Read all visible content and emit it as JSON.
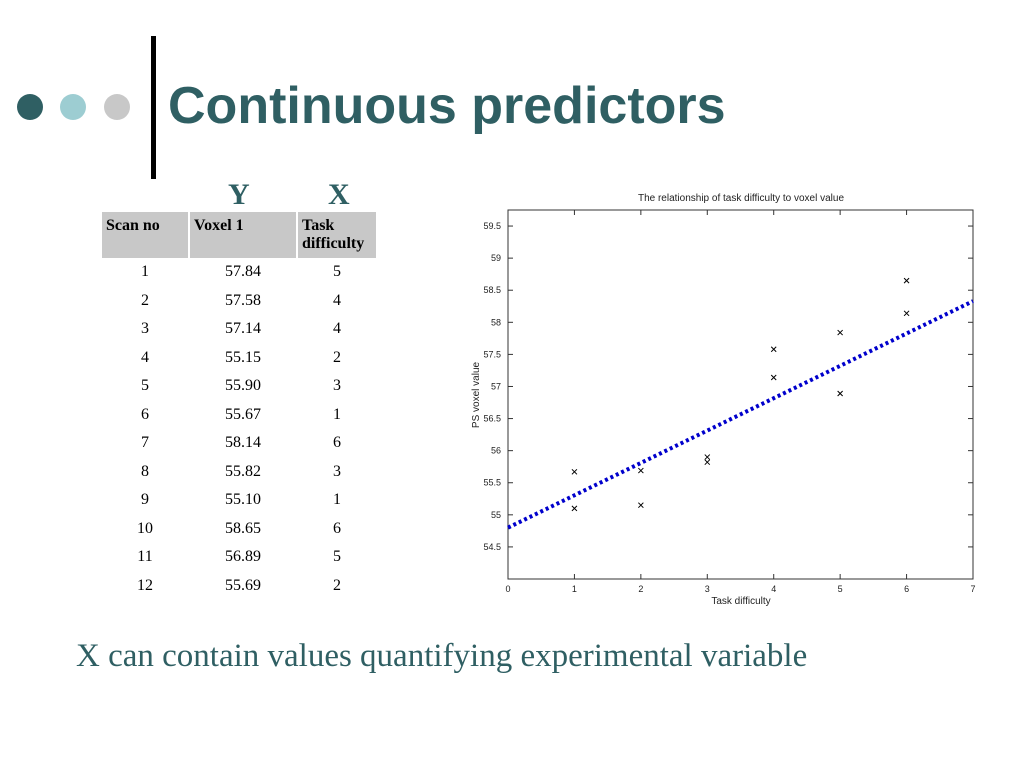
{
  "slide": {
    "title": "Continuous predictors",
    "y_label": "Y",
    "x_label": "X",
    "caption": "X can contain values quantifying experimental variable",
    "colors": {
      "title": "#2f5f63",
      "dot1": "#2f5f63",
      "dot2": "#9dcdd2",
      "dot3": "#c8c8c8",
      "fit_line": "#0000cc"
    }
  },
  "table": {
    "headers": [
      "Scan no",
      "Voxel 1",
      "Task difficulty"
    ],
    "rows": [
      [
        "1",
        "57.84",
        "5"
      ],
      [
        "2",
        "57.58",
        "4"
      ],
      [
        "3",
        "57.14",
        "4"
      ],
      [
        "4",
        "55.15",
        "2"
      ],
      [
        "5",
        "55.90",
        "3"
      ],
      [
        "6",
        "55.67",
        "1"
      ],
      [
        "7",
        "58.14",
        "6"
      ],
      [
        "8",
        "55.82",
        "3"
      ],
      [
        "9",
        "55.10",
        "1"
      ],
      [
        "10",
        "58.65",
        "6"
      ],
      [
        "11",
        "56.89",
        "5"
      ],
      [
        "12",
        "55.69",
        "2"
      ]
    ]
  },
  "chart_data": {
    "type": "scatter",
    "title": "The relationship of task difficulty to voxel value",
    "xlabel": "Task difficulty",
    "ylabel": "PS voxel value",
    "xlim": [
      0,
      7
    ],
    "ylim": [
      54,
      59.75
    ],
    "xticks": [
      "0",
      "1",
      "2",
      "3",
      "4",
      "5",
      "6",
      "7"
    ],
    "yticks": [
      "54.5",
      "55",
      "55.5",
      "56",
      "56.5",
      "57",
      "57.5",
      "58",
      "58.5",
      "59",
      "59.5"
    ],
    "grid": false,
    "points": [
      {
        "x": 5,
        "y": 57.84
      },
      {
        "x": 4,
        "y": 57.58
      },
      {
        "x": 4,
        "y": 57.14
      },
      {
        "x": 2,
        "y": 55.15
      },
      {
        "x": 3,
        "y": 55.9
      },
      {
        "x": 1,
        "y": 55.67
      },
      {
        "x": 6,
        "y": 58.14
      },
      {
        "x": 3,
        "y": 55.82
      },
      {
        "x": 1,
        "y": 55.1
      },
      {
        "x": 6,
        "y": 58.65
      },
      {
        "x": 5,
        "y": 56.89
      },
      {
        "x": 2,
        "y": 55.69
      }
    ],
    "fit_line": {
      "x": [
        0,
        7
      ],
      "y": [
        54.8,
        58.33
      ]
    }
  }
}
